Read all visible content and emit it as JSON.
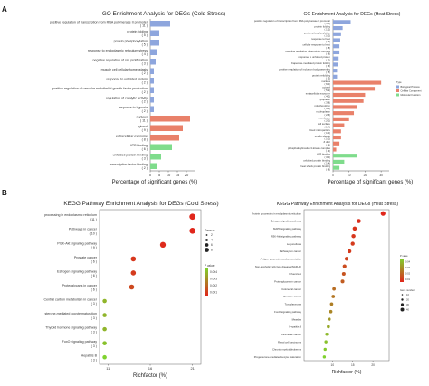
{
  "panel_labels": {
    "a": "A",
    "b": "B"
  },
  "colors": {
    "biological_process": "#8ea6dd",
    "cellular_component": "#e9816a",
    "molecular_function": "#7fdc8c",
    "pvalue_low": "#e0261b",
    "pvalue_high": "#7fd22e"
  },
  "chart_data": [
    {
      "id": "go_cold",
      "type": "bar",
      "orientation": "horizontal",
      "title": "GO Enrichment Analysis for DEGs (Cold Stress)",
      "xlabel": "Percentage of significant genes (%)",
      "xlim": [
        0,
        25
      ],
      "xticks": [
        "0",
        "5",
        "10",
        "15",
        "20"
      ],
      "categories": [
        "positive regulation of transcription from RNA polymerase II promoter",
        "protein folding",
        "protein phosphorylation",
        "response to endoplasmic reticulum stress",
        "negative regulation of cell proliferation",
        "muscle cell cellular homeostasis",
        "response to unfolded protein",
        "positive regulation of vascular endothelial growth factor production",
        "regulation of catalytic activity",
        "response to hypoxia",
        "nucleus",
        "cytosol",
        "extracellular exosome",
        "ATP binding",
        "unfolded protein binding",
        "transcription factor binding"
      ],
      "counts": [
        "( 11 )",
        "( 5 )",
        "( 5 )",
        "( 4 )",
        "( 3 )",
        "( 2 )",
        "( 2 )",
        "( 2 )",
        "( 2 )",
        "( 2 )",
        "( 11 )",
        "( 9 )",
        "( 8 )",
        "( 6 )",
        "( 3 )",
        "( 2 )"
      ],
      "values": [
        11,
        5,
        5,
        4,
        3,
        2,
        2,
        2,
        2,
        2,
        22,
        18,
        16,
        12,
        6,
        4
      ],
      "groups": [
        "bp",
        "bp",
        "bp",
        "bp",
        "bp",
        "bp",
        "bp",
        "bp",
        "bp",
        "bp",
        "cc",
        "cc",
        "cc",
        "mf",
        "mf",
        "mf"
      ]
    },
    {
      "id": "go_heat",
      "type": "bar",
      "orientation": "horizontal",
      "title": "GO Enrichment Analysis for DEGs (Heat Stress)",
      "xlabel": "Percentage of significant genes (%)",
      "xlim": [
        0,
        35
      ],
      "xticks": [
        "0",
        "10",
        "20",
        "30"
      ],
      "legend": {
        "title": "Type",
        "position": "right",
        "items": [
          "Biological Process",
          "Cellular Component",
          "Molecular Function"
        ]
      },
      "categories": [
        "positive regulation of transcription from RNA polymerase II promoter",
        "protein folding",
        "protein phosphorylation",
        "response to heat",
        "cellular response to heat",
        "negative regulation of apoptotic process",
        "response to unfolded protein",
        "chaperone-mediated protein folding",
        "positive regulation of inclusion body assembly",
        "protein refolding",
        "nucleus",
        "cytosol",
        "extracellular exosome",
        "cytoplasm",
        "mitochondrion",
        "nucleoplasm",
        "membrane",
        "cell surface",
        "blood microparticle",
        "myelin sheath",
        "Z disc",
        "phosphatidylinositol 3-kinase complex",
        "ATP binding",
        "unfolded protein binding",
        "heat shock protein binding"
      ],
      "counts": [
        "( 22 )",
        "( 12 )",
        "( 10 )",
        "( 9 )",
        "( 8 )",
        "( 8 )",
        "( 7 )",
        "( 6 )",
        "( 5 )",
        "( 5 )",
        "( 60 )",
        "( 52 )",
        "( 40 )",
        "( 38 )",
        "( 30 )",
        "( 26 )",
        "( 20 )",
        "( 14 )",
        "( 10 )",
        "( 10 )",
        "( 8 )",
        "( 4 )",
        "( 30 )",
        "( 14 )",
        "( 8 )"
      ],
      "values": [
        11,
        6,
        5,
        4.5,
        4,
        4,
        3.5,
        3,
        2.5,
        2.5,
        30,
        26,
        20,
        19,
        15,
        13,
        10,
        7,
        5,
        5,
        4,
        2,
        15,
        7,
        4
      ],
      "groups": [
        "bp",
        "bp",
        "bp",
        "bp",
        "bp",
        "bp",
        "bp",
        "bp",
        "bp",
        "bp",
        "cc",
        "cc",
        "cc",
        "cc",
        "cc",
        "cc",
        "cc",
        "cc",
        "cc",
        "cc",
        "cc",
        "cc",
        "mf",
        "mf",
        "mf"
      ]
    },
    {
      "id": "kegg_cold",
      "type": "scatter",
      "title": "KEGG Pathway Enrichment Analysis for DEGs (Cold Stress)",
      "xlabel": "Richfactor (%)",
      "xlim": [
        10,
        22
      ],
      "xticks": [
        "11",
        "16",
        "21"
      ],
      "size_legend": {
        "title": "Gene n",
        "items": [
          "2",
          "4",
          "6",
          "8"
        ]
      },
      "color_legend": {
        "title": "P value",
        "ticks": [
          "0.004",
          "0.003",
          "0.002",
          "0.001"
        ]
      },
      "categories": [
        "processing in endoplasmic reticulum",
        "Pathways in cancer",
        "PI3K-Akt signaling pathway",
        "Prostate cancer",
        "Estrogen signaling pathway",
        "Proteoglycans in cancer",
        "Central carbon metabolism in cancer",
        "sterone-mediated oocyte maturation",
        "Thyroid hormone signaling pathway",
        "FoxO signaling pathway",
        "Hepatitis B"
      ],
      "counts": [
        "( 11 )",
        "( 10 )",
        "( 9 )",
        "( 6 )",
        "( 6 )",
        "( 6 )",
        "( 3 )",
        "( 3 )",
        "( 3 )",
        "( 3 )",
        "( 3 )"
      ],
      "x": [
        21,
        21,
        17.5,
        14,
        14,
        13.8,
        10.6,
        10.6,
        10.6,
        10.6,
        10.6
      ],
      "size": [
        11,
        10,
        9,
        6,
        6,
        6,
        3,
        3,
        3,
        3,
        3
      ],
      "pvalue": [
        0.0001,
        0.0001,
        0.0002,
        0.0005,
        0.0006,
        0.0009,
        0.0035,
        0.0035,
        0.0035,
        0.0038,
        0.0042
      ]
    },
    {
      "id": "kegg_heat",
      "type": "scatter",
      "title": "KEGG Pathway Enrichment Analysis for DEGs (Heat Stress)",
      "xlabel": "Richfactor (%)",
      "xlim": [
        3,
        24
      ],
      "xticks": [
        "10",
        "15",
        "20",
        "25"
      ],
      "size_legend": {
        "title": "Gene number",
        "items": [
          "10",
          "20",
          "30",
          "40"
        ]
      },
      "color_legend": {
        "title": "P value",
        "ticks": [
          "0.04",
          "0.03",
          "0.02",
          "0.01"
        ]
      },
      "categories": [
        "Protein processing in endoplasmic reticulum",
        "Estrogen signaling pathway",
        "MAPK signaling pathway",
        "PI3K-Akt signaling pathway",
        "Legionellosis",
        "Pathways in cancer",
        "Antigen processing and presentation",
        "Non-alcoholic fatty liver disease (NAFLD)",
        "Influenza A",
        "Proteoglycans in cancer",
        "Colorectal cancer",
        "Prostate cancer",
        "Toxoplasmosis",
        "FoxO signaling pathway",
        "Measles",
        "Hepatitis B",
        "Pancreatic cancer",
        "Renal cell carcinoma",
        "Chronic myeloid leukemia",
        "Progesterone-mediated oocyte maturation"
      ],
      "x": [
        22.5,
        16.5,
        15.5,
        15.2,
        15,
        14.2,
        13.5,
        13,
        12.8,
        12.5,
        10.4,
        10.2,
        9.8,
        9.6,
        9.2,
        9,
        8.6,
        8.4,
        8.2,
        8
      ],
      "size": [
        45,
        30,
        30,
        28,
        25,
        25,
        22,
        22,
        20,
        20,
        15,
        15,
        14,
        14,
        12,
        12,
        11,
        10,
        10,
        10
      ],
      "pvalue": [
        0.001,
        0.003,
        0.004,
        0.005,
        0.006,
        0.006,
        0.008,
        0.01,
        0.012,
        0.014,
        0.018,
        0.02,
        0.022,
        0.024,
        0.028,
        0.032,
        0.036,
        0.038,
        0.04,
        0.042
      ]
    }
  ]
}
